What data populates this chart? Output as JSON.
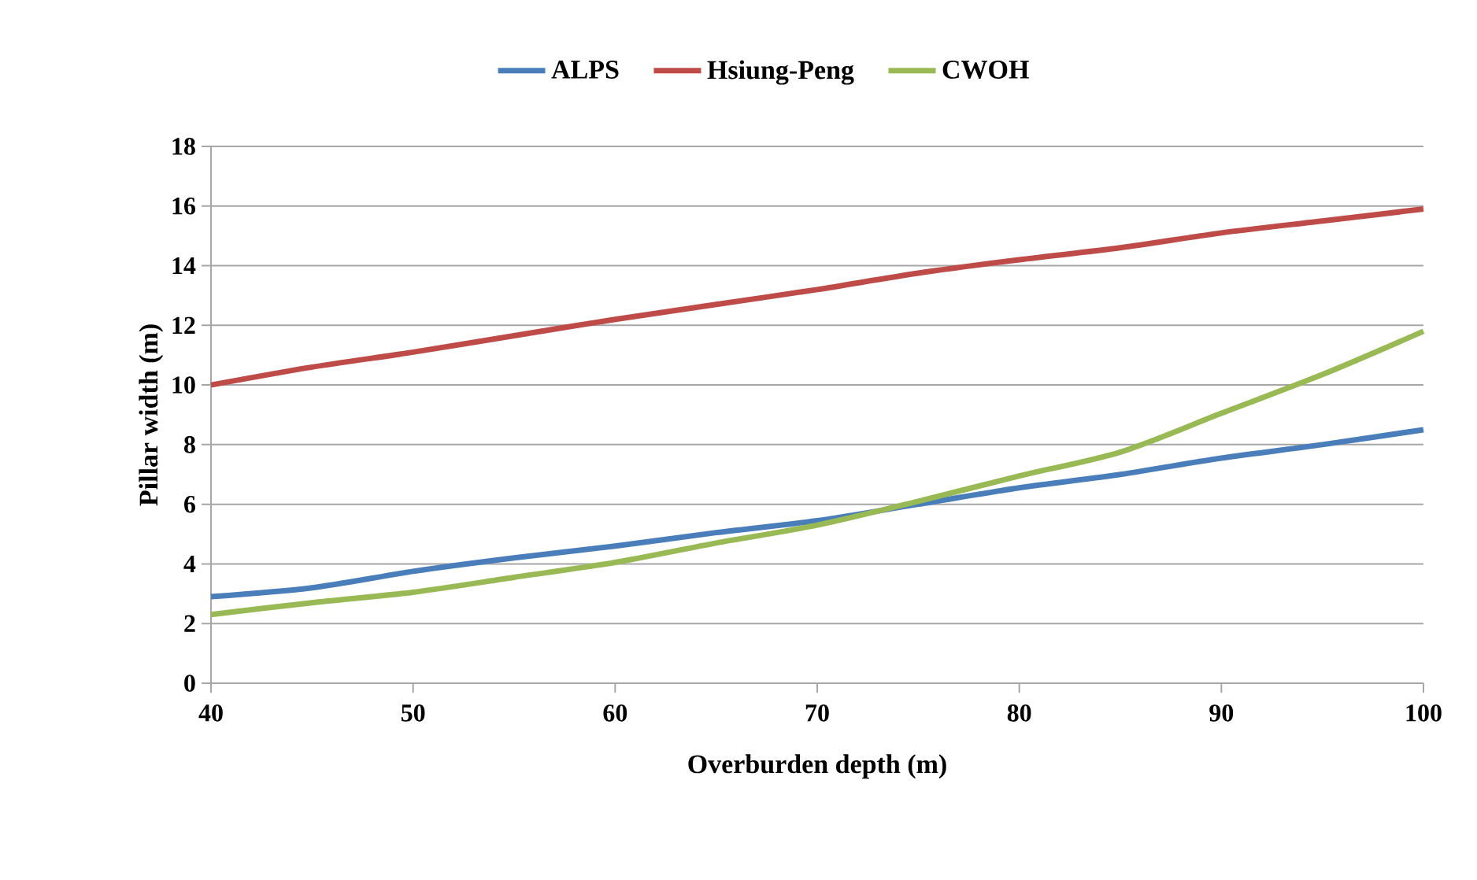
{
  "chart_data": {
    "type": "line",
    "xlabel": "Overburden depth (m)",
    "ylabel": "Pillar width (m)",
    "x": [
      40,
      45,
      50,
      55,
      60,
      65,
      70,
      75,
      80,
      85,
      90,
      95,
      100
    ],
    "series": [
      {
        "name": "ALPS",
        "color": "#4a7ebb",
        "values": [
          2.9,
          3.2,
          3.75,
          4.2,
          4.6,
          5.05,
          5.45,
          6.0,
          6.55,
          7.0,
          7.55,
          8.0,
          8.5
        ]
      },
      {
        "name": "Hsiung-Peng",
        "color": "#be4b48",
        "values": [
          10.0,
          10.6,
          11.1,
          11.65,
          12.2,
          12.7,
          13.2,
          13.75,
          14.2,
          14.6,
          15.1,
          15.5,
          15.9
        ]
      },
      {
        "name": "CWOH",
        "color": "#98b954",
        "values": [
          2.3,
          2.7,
          3.05,
          3.55,
          4.05,
          4.7,
          5.3,
          6.1,
          6.95,
          7.75,
          9.05,
          10.35,
          11.8
        ]
      }
    ],
    "xlim": [
      40,
      100
    ],
    "xticks": [
      40,
      50,
      60,
      70,
      80,
      90,
      100
    ],
    "ylim": [
      0,
      18
    ],
    "yticks": [
      0,
      2,
      4,
      6,
      8,
      10,
      12,
      14,
      16,
      18
    ],
    "grid": "y",
    "legend": "top",
    "marker": "none"
  }
}
